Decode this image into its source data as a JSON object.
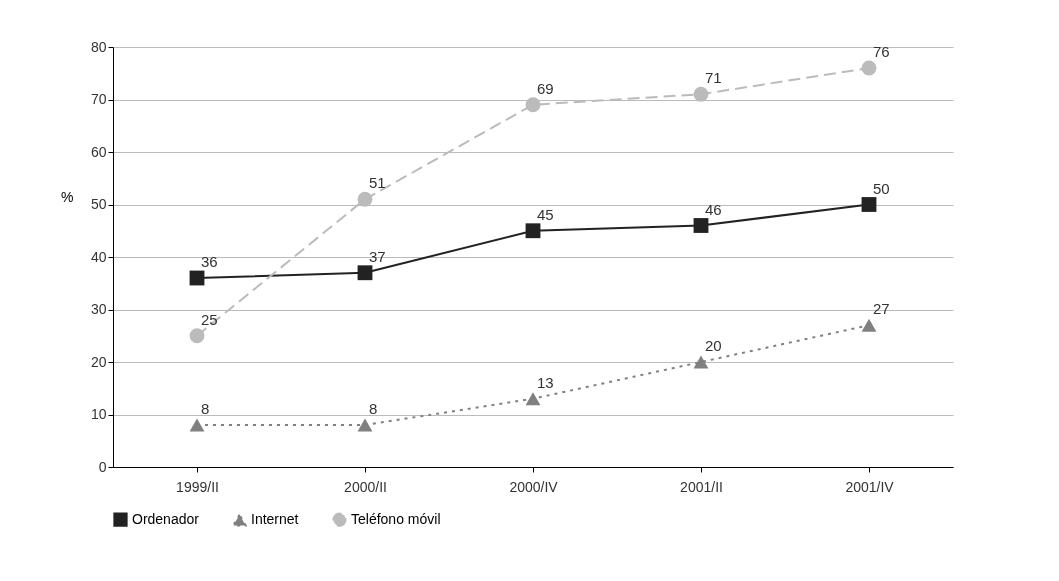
{
  "chart_data": {
    "type": "line",
    "ylabel": "%",
    "categories": [
      "1999/II",
      "2000/II",
      "2000/IV",
      "2001/II",
      "2001/IV"
    ],
    "series": [
      {
        "name": "Ordenador",
        "color": "#222222",
        "values": [
          36,
          37,
          45,
          46,
          50
        ],
        "marker": "square",
        "line_style": "solid"
      },
      {
        "name": "Internet",
        "color": "#808080",
        "values": [
          8,
          8,
          13,
          20,
          27
        ],
        "marker": "triangle",
        "line_style": "dotted"
      },
      {
        "name": "Teléfono móvil",
        "color": "#bbbbbb",
        "values": [
          25,
          51,
          69,
          71,
          76
        ],
        "marker": "circle",
        "line_style": "dashed"
      }
    ],
    "ylim": [
      0,
      80
    ],
    "yticks": [
      0,
      10,
      20,
      30,
      40,
      50,
      60,
      70,
      80
    ],
    "grid": "y",
    "legend": "bottom",
    "data_labels": true
  }
}
